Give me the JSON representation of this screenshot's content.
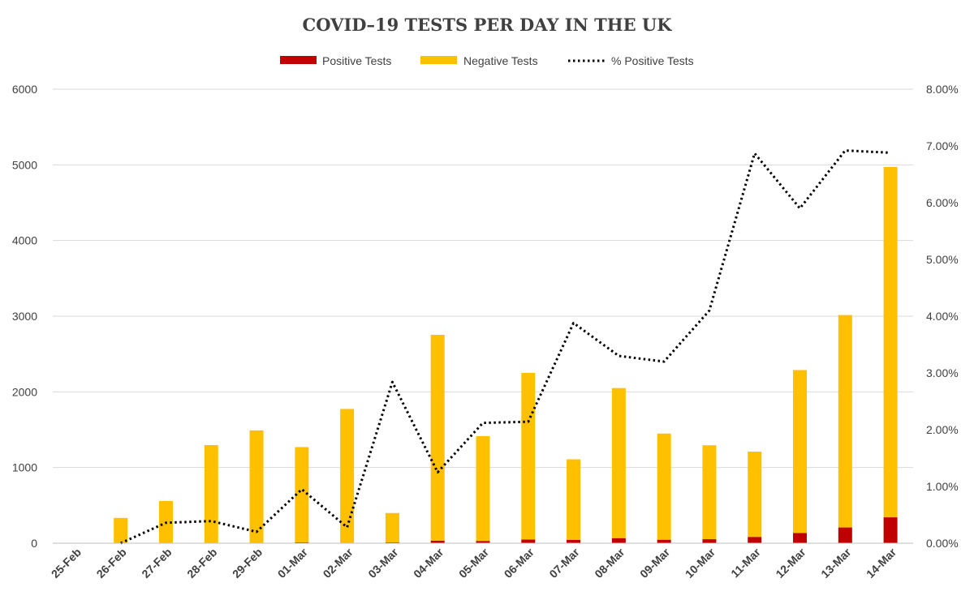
{
  "chart_data": {
    "type": "bar",
    "title": "COVID–19 TESTS PER DAY IN THE UK",
    "categories": [
      "25-Feb",
      "26-Feb",
      "27-Feb",
      "28-Feb",
      "29-Feb",
      "01-Mar",
      "02-Mar",
      "03-Mar",
      "04-Mar",
      "05-Mar",
      "06-Mar",
      "07-Mar",
      "08-Mar",
      "09-Mar",
      "10-Mar",
      "11-Mar",
      "12-Mar",
      "13-Mar",
      "14-Mar"
    ],
    "series": [
      {
        "name": "Positive Tests",
        "kind": "stacked-bar",
        "axis": "left",
        "color": "#c00000",
        "values": [
          0,
          0,
          2,
          5,
          3,
          12,
          5,
          11,
          34,
          30,
          48,
          43,
          67,
          46,
          53,
          83,
          134,
          208,
          342
        ]
      },
      {
        "name": "Negative Tests",
        "kind": "stacked-bar",
        "axis": "left",
        "color": "#ffc000",
        "values": [
          0,
          334,
          556,
          1292,
          1488,
          1258,
          1769,
          388,
          2720,
          1385,
          2203,
          1066,
          1983,
          1403,
          1241,
          1127,
          2154,
          2807,
          4630
        ]
      },
      {
        "name": "% Positive Tests",
        "kind": "line",
        "axis": "right",
        "style": "dotted",
        "color": "#000000",
        "values": [
          null,
          0.0,
          0.0036,
          0.0039,
          0.002,
          0.0095,
          0.0028,
          0.0284,
          0.0125,
          0.0212,
          0.0214,
          0.0388,
          0.033,
          0.032,
          0.041,
          0.0687,
          0.059,
          0.0692,
          0.0688
        ]
      }
    ],
    "y_left": {
      "min": 0,
      "max": 6000,
      "ticks": [
        "0",
        "1000",
        "2000",
        "3000",
        "4000",
        "5000",
        "6000"
      ]
    },
    "y_right": {
      "min": 0,
      "max": 0.08,
      "ticks": [
        "0.00%",
        "1.00%",
        "2.00%",
        "3.00%",
        "4.00%",
        "5.00%",
        "6.00%",
        "7.00%",
        "8.00%"
      ]
    },
    "grid": true,
    "legend_position": "top-center",
    "colors": {
      "gridline": "#d9d9d9",
      "text": "#404040"
    }
  }
}
